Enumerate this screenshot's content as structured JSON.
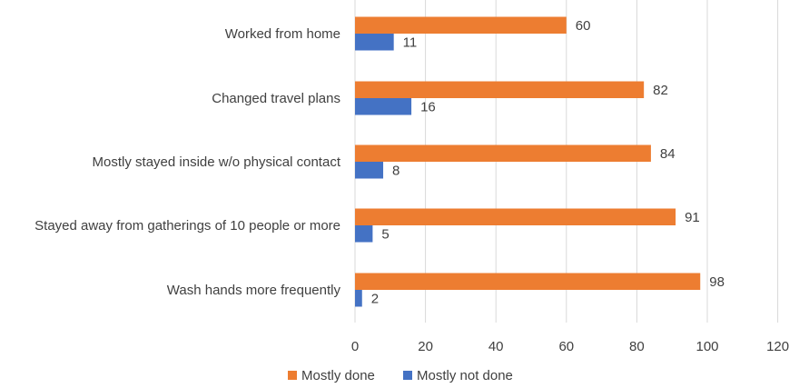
{
  "chart_data": {
    "type": "bar",
    "orientation": "horizontal",
    "title": "",
    "xlabel": "",
    "ylabel": "",
    "categories": [
      "Worked from home",
      "Changed travel plans",
      "Mostly stayed inside w/o physical contact",
      "Stayed away from gatherings of 10 people or more",
      "Wash hands more frequently"
    ],
    "series": [
      {
        "name": "Mostly done",
        "color": "#ED7D31",
        "values": [
          60,
          82,
          84,
          91,
          98
        ]
      },
      {
        "name": "Mostly not done",
        "color": "#4472C4",
        "values": [
          11,
          16,
          8,
          5,
          2
        ]
      }
    ],
    "xlim": [
      0,
      120
    ],
    "xticks": [
      0,
      20,
      40,
      60,
      80,
      100,
      120
    ],
    "grid": "vertical",
    "data_labels": true,
    "legend": "bottom"
  }
}
